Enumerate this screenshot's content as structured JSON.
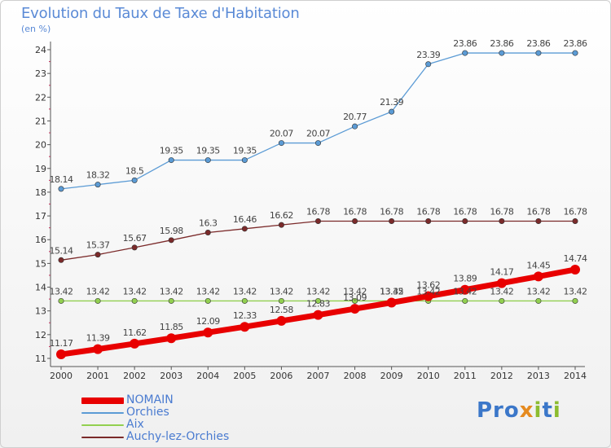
{
  "title": "Evolution du Taux de Taxe d'Habitation",
  "subtitle": "(en %)",
  "logo_text": "Proxiti",
  "chart_data": {
    "type": "line",
    "title": "Evolution du Taux de Taxe d'Habitation",
    "ylabel": "(en %)",
    "xlabel": "",
    "x": [
      2000,
      2001,
      2002,
      2003,
      2004,
      2005,
      2006,
      2007,
      2008,
      2009,
      2010,
      2011,
      2012,
      2013,
      2014
    ],
    "ylim": [
      11,
      24
    ],
    "yticks": [
      11,
      12,
      13,
      14,
      15,
      16,
      17,
      18,
      19,
      20,
      21,
      22,
      23,
      24
    ],
    "grid": false,
    "legend_position": "bottom-left",
    "series": [
      {
        "name": "NOMAIN",
        "color": "#e80000",
        "values": [
          11.17,
          11.39,
          11.62,
          11.85,
          12.09,
          12.33,
          12.58,
          12.83,
          13.09,
          13.35,
          13.62,
          13.89,
          14.17,
          14.45,
          14.74
        ],
        "labels": [
          "11.17",
          "11.39",
          "11.62",
          "11.85",
          "12.09",
          "12.33",
          "12.58",
          "12.83",
          "13.09",
          "13.35",
          "13.62",
          "13.89",
          "14.17",
          "14.45",
          "14.74"
        ]
      },
      {
        "name": "Orchies",
        "color": "#5b9bd5",
        "values": [
          18.14,
          18.32,
          18.5,
          19.35,
          19.35,
          19.35,
          20.07,
          20.07,
          20.77,
          21.39,
          23.39,
          23.86,
          23.86,
          23.86,
          23.86
        ],
        "labels": [
          "18.14",
          "18.32",
          "18.5",
          "19.35",
          "19.35",
          "19.35",
          "20.07",
          "20.07",
          "20.77",
          "21.39",
          "23.39",
          "23.86",
          "23.86",
          "23.86",
          "23.86"
        ]
      },
      {
        "name": "Aix",
        "color": "#92d050",
        "values": [
          13.42,
          13.42,
          13.42,
          13.42,
          13.42,
          13.42,
          13.42,
          13.42,
          13.42,
          13.42,
          13.42,
          13.42,
          13.42,
          13.42,
          13.42
        ],
        "labels": [
          "13.42",
          "13.42",
          "13.42",
          "13.42",
          "13.42",
          "13.42",
          "13.42",
          "13.42",
          "13.42",
          "13.42",
          "13.42",
          "13.42",
          "13.42",
          "13.42",
          "13.42"
        ]
      },
      {
        "name": "Auchy-lez-Orchies",
        "color": "#7b2a2a",
        "values": [
          15.14,
          15.37,
          15.67,
          15.98,
          16.3,
          16.46,
          16.62,
          16.78,
          16.78,
          16.78,
          16.78,
          16.78,
          16.78,
          16.78,
          16.78
        ],
        "labels": [
          "15.14",
          "15.37",
          "15.67",
          "15.98",
          "16.3",
          "16.46",
          "16.62",
          "16.78",
          "16.78",
          "16.78",
          "16.78",
          "16.78",
          "16.78",
          "16.78",
          "16.78"
        ]
      }
    ]
  }
}
